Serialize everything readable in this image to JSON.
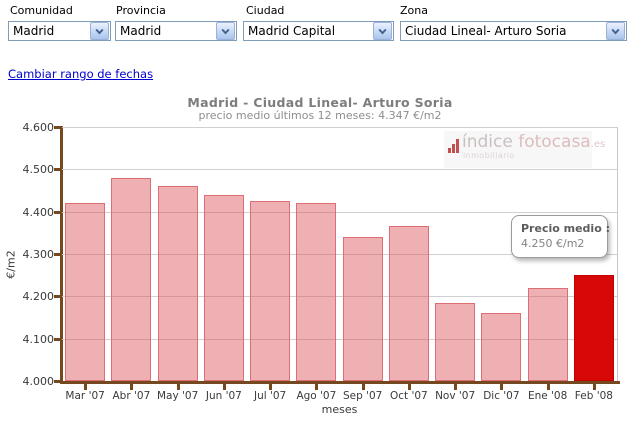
{
  "filters": {
    "items": [
      {
        "label": "Comunidad",
        "value": "Madrid"
      },
      {
        "label": "Provincia",
        "value": "Madrid"
      },
      {
        "label": "Ciudad",
        "value": "Madrid Capital"
      },
      {
        "label": "Zona",
        "value": "Ciudad Lineal- Arturo Soria"
      }
    ]
  },
  "date_range_link": "Cambiar rango de fechas",
  "chart": {
    "title": "Madrid - Ciudad Lineal- Arturo Soria",
    "subtitle": "precio medio últimos 12 meses: 4.347 €/m2"
  },
  "chart_data": {
    "type": "bar",
    "title": "Madrid - Ciudad Lineal- Arturo Soria",
    "subtitle": "precio medio últimos 12 meses: 4.347 €/m2",
    "categories": [
      "Mar '07",
      "Abr '07",
      "May '07",
      "Jun '07",
      "Jul '07",
      "Ago '07",
      "Sep '07",
      "Oct '07",
      "Nov '07",
      "Dic '07",
      "Ene '08",
      "Feb '08"
    ],
    "values": [
      4420,
      4480,
      4460,
      4440,
      4425,
      4420,
      4340,
      4365,
      4185,
      4160,
      4220,
      4250
    ],
    "unit": "€/m2",
    "highlighted_index": 11,
    "highlighted_value_label": "4.250 €/m2",
    "xlabel": "meses",
    "ylabel": "€/m2",
    "ylim": [
      4000,
      4600
    ],
    "ytick_labels": [
      "4.600",
      "4.500",
      "4.400",
      "4.300",
      "4.200",
      "4.100",
      "4.000"
    ],
    "grid": true,
    "legend": false,
    "colors": {
      "bar_fill": "#f0b2b6",
      "bar_border": "#dd6e76",
      "highlight_bar": "#d60808",
      "axis": "#75481f",
      "gridline": "#d0d0d0"
    }
  },
  "tooltip": {
    "label": "Precio medio :",
    "value": "4.250 €/m2"
  },
  "watermark": {
    "icon": "bar-chart-icon",
    "text_indice": "índice",
    "text_fotocasa": "fotocasa",
    "text_es": ".es",
    "text_sub": "inmobiliario"
  }
}
